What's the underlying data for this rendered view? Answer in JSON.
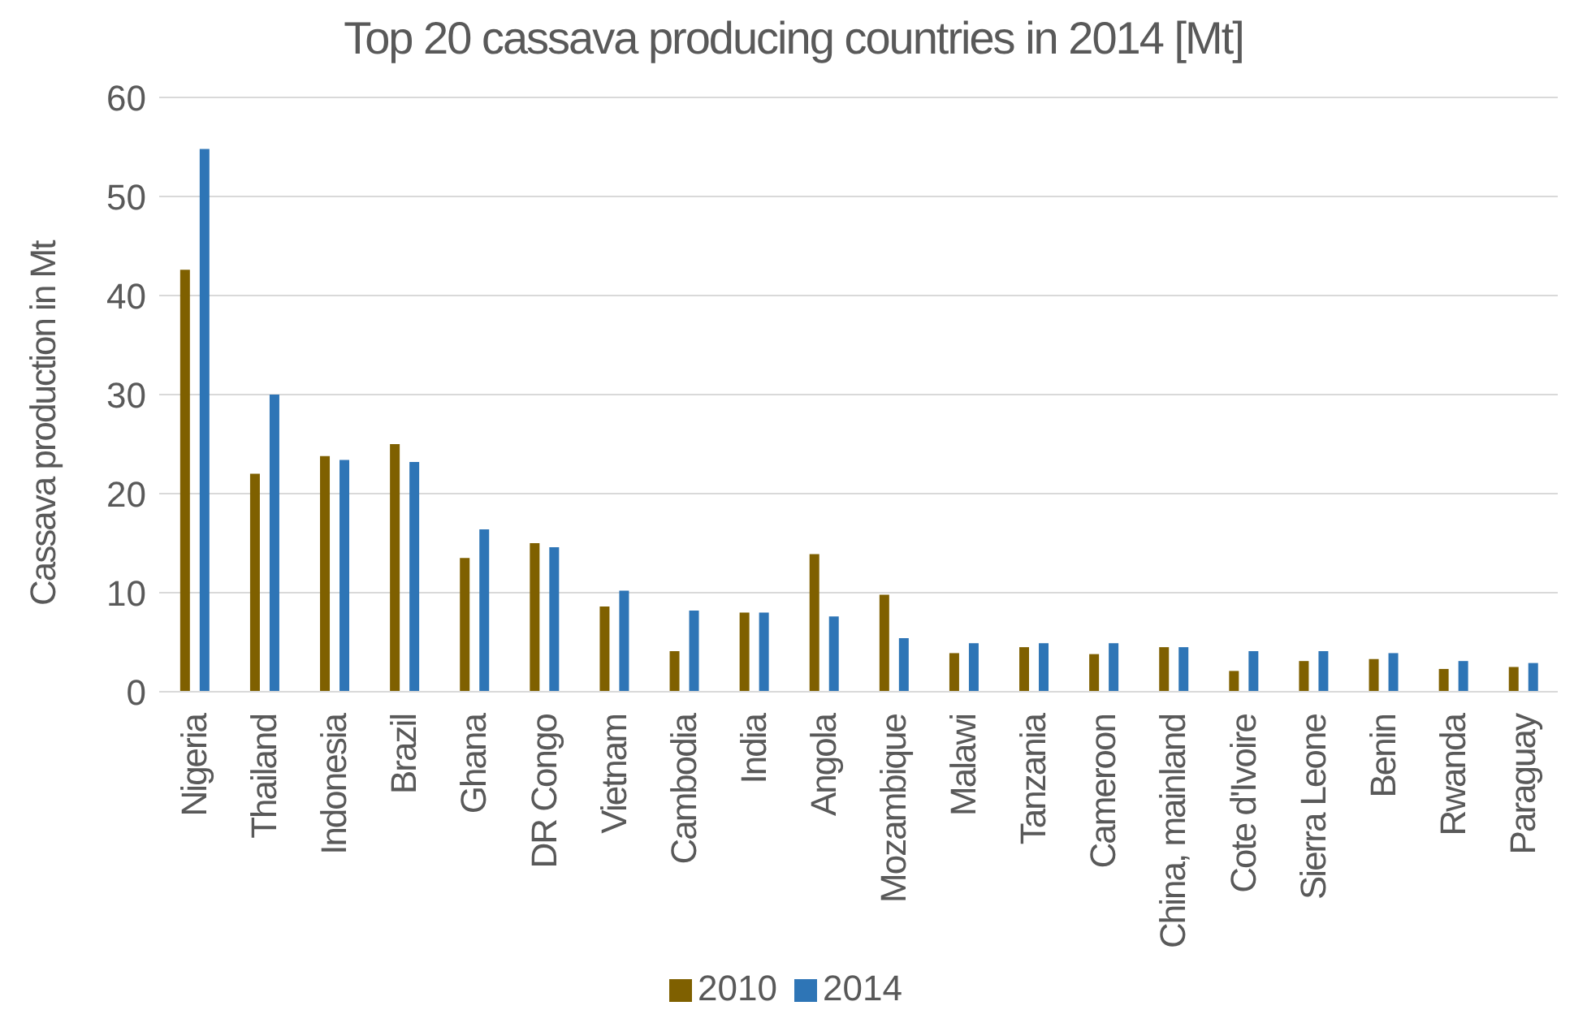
{
  "chart_data": {
    "type": "bar",
    "title": "Top 20 cassava producing countries in 2014 [Mt]",
    "ylabel": "Cassava production in Mt",
    "categories": [
      "Nigeria",
      "Thailand",
      "Indonesia",
      "Brazil",
      "Ghana",
      "DR Congo",
      "Vietnam",
      "Cambodia",
      "India",
      "Angola",
      "Mozambique",
      "Malawi",
      "Tanzania",
      "Cameroon",
      "China, mainland",
      "Cote d'Ivoire",
      "Sierra Leone",
      "Benin",
      "Rwanda",
      "Paraguay"
    ],
    "series": [
      {
        "name": "2010",
        "color": "#7f6000",
        "values": [
          42.6,
          22.0,
          23.8,
          25.0,
          13.5,
          15.0,
          8.6,
          4.1,
          8.0,
          13.9,
          9.8,
          3.9,
          4.5,
          3.8,
          4.5,
          2.1,
          3.1,
          3.3,
          2.3,
          2.5
        ]
      },
      {
        "name": "2014",
        "color": "#2e75b6",
        "values": [
          54.8,
          30.0,
          23.4,
          23.2,
          16.4,
          14.6,
          10.2,
          8.2,
          8.0,
          7.6,
          5.4,
          4.9,
          4.9,
          4.9,
          4.5,
          4.1,
          4.1,
          3.9,
          3.1,
          2.9
        ]
      }
    ],
    "ylim": [
      0,
      60
    ],
    "yticks": [
      0,
      10,
      20,
      30,
      40,
      50,
      60
    ],
    "grid": "y",
    "legend": "bottom"
  }
}
